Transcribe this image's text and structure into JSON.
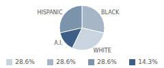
{
  "chart_data": {
    "type": "pie",
    "categories": [
      "WHITE",
      "BLACK",
      "HISPANIC",
      "A.I."
    ],
    "values": [
      28.6,
      28.6,
      28.6,
      14.3
    ],
    "value_labels": [
      "28.6%",
      "28.6%",
      "28.6%",
      "14.3%"
    ],
    "colors": [
      "#c9d4de",
      "#a7b6c6",
      "#7b93ab",
      "#3e5f85"
    ],
    "legend": "bottom"
  }
}
